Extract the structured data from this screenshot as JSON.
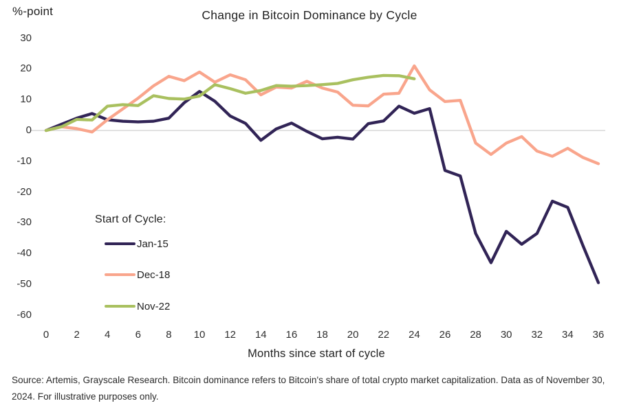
{
  "page": {
    "unit_label": "%-point",
    "title": "Change in Bitcoin Dominance by Cycle"
  },
  "chart_data": {
    "type": "line",
    "title": "Change in Bitcoin Dominance by Cycle",
    "ylabel": "%-point",
    "xlabel": "Months since start of cycle",
    "xlim": [
      0,
      36
    ],
    "ylim": [
      -60,
      30
    ],
    "x_ticks": [
      0,
      2,
      4,
      6,
      8,
      10,
      12,
      14,
      16,
      18,
      20,
      22,
      24,
      26,
      28,
      30,
      32,
      34,
      36
    ],
    "y_ticks": [
      30,
      20,
      10,
      0,
      -10,
      -20,
      -30,
      -40,
      -50,
      -60
    ],
    "grid": false,
    "zero_line": true,
    "zero_line_color": "#d9d9d9",
    "legend_title": "Start of Cycle:",
    "legend_position": "inside-left",
    "series": [
      {
        "name": "Jan-15",
        "color": "#312456",
        "x": [
          0,
          1,
          2,
          3,
          4,
          5,
          6,
          7,
          8,
          9,
          10,
          11,
          12,
          13,
          14,
          15,
          16,
          17,
          18,
          19,
          20,
          21,
          22,
          23,
          24,
          25,
          26,
          27,
          28,
          29,
          30,
          31,
          32,
          33,
          34,
          35,
          36
        ],
        "values": [
          0,
          2,
          4,
          5.5,
          3.5,
          3,
          2.8,
          3,
          4,
          9,
          12.7,
          9.5,
          4.7,
          2.3,
          -3.2,
          0.5,
          2.4,
          -0.3,
          -2.7,
          -2.2,
          -2.8,
          2.2,
          3.1,
          7.9,
          5.6,
          7.1,
          -13,
          -14.8,
          -33.5,
          -43,
          -32.8,
          -37,
          -33.5,
          -23,
          -25,
          -37.5,
          -49.5
        ]
      },
      {
        "name": "Dec-18",
        "color": "#f9a58c",
        "x": [
          0,
          1,
          2,
          3,
          4,
          5,
          6,
          7,
          8,
          9,
          10,
          11,
          12,
          13,
          14,
          15,
          16,
          17,
          18,
          19,
          20,
          21,
          22,
          23,
          24,
          25,
          26,
          27,
          28,
          29,
          30,
          31,
          32,
          33,
          34,
          35,
          36
        ],
        "values": [
          0,
          1.2,
          0.6,
          -0.5,
          3.5,
          7,
          10.5,
          14.5,
          17.6,
          16.2,
          19,
          15.7,
          18.1,
          16.5,
          11.6,
          14.1,
          13.8,
          16,
          13.8,
          12.5,
          8.2,
          8,
          11.8,
          12.1,
          21,
          13.2,
          9.4,
          9.8,
          -4.1,
          -7.8,
          -4.1,
          -2,
          -6.7,
          -8.4,
          -5.8,
          -8.8,
          -10.8
        ]
      },
      {
        "name": "Nov-22",
        "color": "#a9c05f",
        "x": [
          0,
          1,
          2,
          3,
          4,
          5,
          6,
          7,
          8,
          9,
          10,
          11,
          12,
          13,
          14,
          15,
          16,
          17,
          18,
          19,
          20,
          21,
          22,
          23,
          24
        ],
        "values": [
          0,
          1.2,
          3.6,
          3.4,
          7.9,
          8.4,
          8.1,
          11.3,
          10.4,
          10.2,
          11.2,
          14.9,
          13.6,
          12.1,
          13,
          14.6,
          14.4,
          14.6,
          14.9,
          15.3,
          16.5,
          17.3,
          17.9,
          17.8,
          16.8
        ]
      }
    ]
  },
  "footer": {
    "source_line": "Source: Artemis, Grayscale Research. Bitcoin dominance refers to Bitcoin's share of total crypto market capitalization. Data as of November 30, 2024. For illustrative purposes only."
  }
}
